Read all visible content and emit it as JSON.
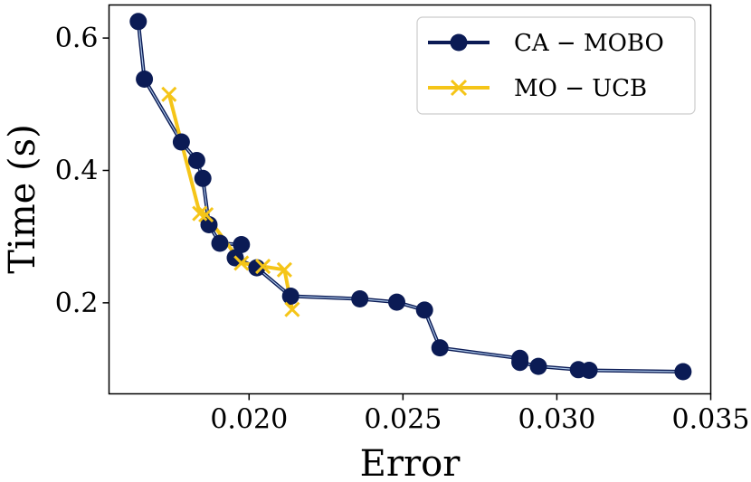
{
  "chart_data": {
    "type": "line",
    "title": "",
    "xlabel": "Error",
    "ylabel": "Time (s)",
    "xlim": [
      0.01545,
      0.035
    ],
    "ylim": [
      0.0625,
      0.65
    ],
    "xticks": [
      0.02,
      0.025,
      0.03,
      0.035
    ],
    "xtick_labels": [
      "0.020",
      "0.025",
      "0.030",
      "0.035"
    ],
    "yticks": [
      0.2,
      0.4,
      0.6
    ],
    "ytick_labels": [
      "0.2",
      "0.4",
      "0.6"
    ],
    "grid": false,
    "legend_position": "top-right",
    "series": [
      {
        "name": "CA − MOBO",
        "color": "#0b1b55",
        "marker": "circle",
        "points": [
          [
            0.0164,
            0.625
          ],
          [
            0.0166,
            0.538
          ],
          [
            0.0178,
            0.443
          ],
          [
            0.0183,
            0.415
          ],
          [
            0.0185,
            0.388
          ],
          [
            0.0187,
            0.318
          ],
          [
            0.01905,
            0.29
          ],
          [
            0.01975,
            0.288
          ],
          [
            0.01955,
            0.268
          ],
          [
            0.02025,
            0.253
          ],
          [
            0.02135,
            0.21
          ],
          [
            0.0236,
            0.206
          ],
          [
            0.0248,
            0.201
          ],
          [
            0.0257,
            0.189
          ],
          [
            0.0262,
            0.132
          ],
          [
            0.0288,
            0.116
          ],
          [
            0.0288,
            0.11
          ],
          [
            0.0294,
            0.104
          ],
          [
            0.0307,
            0.099
          ],
          [
            0.03105,
            0.098
          ],
          [
            0.0341,
            0.096
          ]
        ]
      },
      {
        "name": "MO − UCB",
        "color": "#f5c518",
        "marker": "x",
        "points": [
          [
            0.0174,
            0.515
          ],
          [
            0.0184,
            0.335
          ],
          [
            0.0186,
            0.333
          ],
          [
            0.01975,
            0.26
          ],
          [
            0.02045,
            0.255
          ],
          [
            0.02115,
            0.25
          ],
          [
            0.0214,
            0.19
          ]
        ]
      }
    ]
  }
}
